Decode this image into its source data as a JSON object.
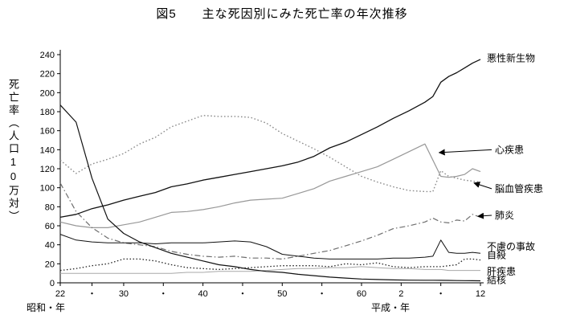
{
  "title": "図5　　主な死因別にみた死亡率の年次推移",
  "y_axis_label": "死亡率（人口10万対）",
  "x_axis": {
    "era_left": "昭和・年",
    "era_right": "平成・年"
  },
  "chart_data": {
    "type": "line",
    "title": "図5 主な死因別にみた死亡率の年次推移",
    "ylabel": "死亡率（人口10万対）",
    "ylim": [
      0,
      240
    ],
    "y_tick_step": 20,
    "x_range_years": [
      1947,
      2000
    ],
    "x_ticks": [
      {
        "year": 1947,
        "label": "22"
      },
      {
        "year": 1951,
        "label": "・"
      },
      {
        "year": 1955,
        "label": "30"
      },
      {
        "year": 1960,
        "label": "・"
      },
      {
        "year": 1965,
        "label": "40"
      },
      {
        "year": 1970,
        "label": "・"
      },
      {
        "year": 1975,
        "label": "50"
      },
      {
        "year": 1980,
        "label": "・"
      },
      {
        "year": 1985,
        "label": "60"
      },
      {
        "year": 1990,
        "label": "2"
      },
      {
        "year": 1995,
        "label": "・"
      },
      {
        "year": 2000,
        "label": "12"
      }
    ],
    "x_years": [
      1947,
      1949,
      1951,
      1953,
      1955,
      1957,
      1959,
      1961,
      1963,
      1965,
      1967,
      1969,
      1971,
      1973,
      1975,
      1977,
      1979,
      1981,
      1983,
      1985,
      1987,
      1989,
      1991,
      1993,
      1994,
      1995,
      1996,
      1997,
      1998,
      1999,
      2000
    ],
    "series": [
      {
        "id": "cerebrovascular-disease",
        "name": "脳血管疾患",
        "color": "#8c8c8c",
        "dash": "1.6 2.6",
        "width": 1.4,
        "values": [
          129,
          115,
          125,
          130,
          136,
          146,
          153,
          164,
          170,
          176,
          175,
          175,
          174,
          168,
          157,
          149,
          141,
          132,
          122,
          112,
          106,
          101,
          97,
          96,
          96,
          118,
          112,
          110,
          108,
          107,
          106
        ]
      },
      {
        "id": "heart-disease",
        "name": "心疾患",
        "color": "#989898",
        "dash": "",
        "width": 1.2,
        "values": [
          64,
          60,
          58,
          58,
          61,
          64,
          69,
          74,
          75,
          77,
          80,
          84,
          87,
          88,
          89,
          94,
          99,
          107,
          112,
          117,
          122,
          130,
          138,
          146,
          129,
          112,
          111,
          112,
          114,
          120,
          117
        ]
      },
      {
        "id": "pneumonia",
        "name": "肺炎",
        "color": "#6e6e6e",
        "dash": "7 3 1.5 3",
        "width": 1.2,
        "values": [
          105,
          75,
          58,
          47,
          42,
          40,
          38,
          33,
          30,
          28,
          27,
          28,
          26,
          26,
          25,
          28,
          31,
          34,
          39,
          44,
          50,
          57,
          60,
          64,
          68,
          64,
          63,
          66,
          65,
          72,
          69
        ]
      },
      {
        "id": "liver-disease",
        "name": "肝疾患",
        "color": "#a8a8a8",
        "dash": "",
        "width": 1,
        "values": [
          10,
          10,
          10,
          10,
          10,
          10,
          10,
          10,
          11,
          11,
          12,
          12,
          12,
          13,
          14,
          15,
          15,
          16,
          16,
          17,
          16,
          15,
          15,
          14,
          14,
          14,
          13,
          13,
          13,
          13,
          13
        ]
      },
      {
        "id": "tuberculosis",
        "name": "結核",
        "color": "#111111",
        "dash": "",
        "width": 1.2,
        "values": [
          187,
          169,
          110,
          67,
          52,
          43,
          37,
          31,
          27,
          23,
          19,
          17,
          14,
          12,
          11,
          9,
          7.5,
          6,
          5,
          4,
          3.5,
          3,
          2.8,
          2.7,
          2.7,
          2.6,
          2.5,
          2.4,
          2.3,
          2.2,
          2.1
        ]
      },
      {
        "id": "malignant-neoplasms",
        "name": "悪性新生物",
        "color": "#111111",
        "dash": "",
        "width": 1.3,
        "values": [
          69,
          72,
          78,
          82,
          87,
          91,
          95,
          101,
          104,
          108,
          111,
          114,
          117,
          120,
          123,
          127,
          133,
          142,
          148,
          156,
          164,
          173,
          181,
          190,
          196,
          211,
          217,
          221,
          226,
          231,
          235
        ]
      },
      {
        "id": "accidents",
        "name": "不慮の事故",
        "color": "#111111",
        "dash": "",
        "width": 1,
        "values": [
          51,
          45,
          43,
          42,
          42,
          42,
          41,
          42,
          42,
          42,
          43,
          44,
          43,
          38,
          30,
          28,
          26,
          25,
          25,
          25,
          25,
          26,
          26,
          27,
          28,
          45,
          32,
          31,
          31,
          32,
          31
        ]
      },
      {
        "id": "suicide",
        "name": "自殺",
        "color": "#222222",
        "dash": "1.5 2.5",
        "width": 1.3,
        "values": [
          13,
          15,
          18,
          20,
          25,
          25,
          23,
          19,
          16,
          15,
          14,
          15,
          16,
          17,
          18,
          18,
          18,
          17,
          20,
          19,
          21,
          17,
          16,
          17,
          17,
          17,
          18,
          19,
          25,
          25,
          24
        ]
      }
    ],
    "labels": [
      {
        "id": "malignant-neoplasms",
        "text": "悪性新生物",
        "y": 236,
        "arrow": null
      },
      {
        "id": "heart-disease",
        "text": "心疾患",
        "y": 140,
        "arrow": {
          "year": 1994.8,
          "value": 137
        }
      },
      {
        "id": "cerebrovascular-disease",
        "text": "脳血管疾患",
        "y": 99,
        "arrow": {
          "year": 1999.2,
          "value": 105
        }
      },
      {
        "id": "pneumonia",
        "text": "肺炎",
        "y": 71,
        "arrow": {
          "year": 1999.7,
          "value": 70
        }
      },
      {
        "id": "accidents",
        "text": "不慮の事故",
        "y": 38,
        "arrow": null
      },
      {
        "id": "suicide",
        "text": "自殺",
        "y": 29,
        "arrow": null
      },
      {
        "id": "liver-disease",
        "text": "肝疾患",
        "y": 12,
        "arrow": null
      },
      {
        "id": "tuberculosis",
        "text": "結核",
        "y": 3,
        "arrow": null
      }
    ]
  }
}
